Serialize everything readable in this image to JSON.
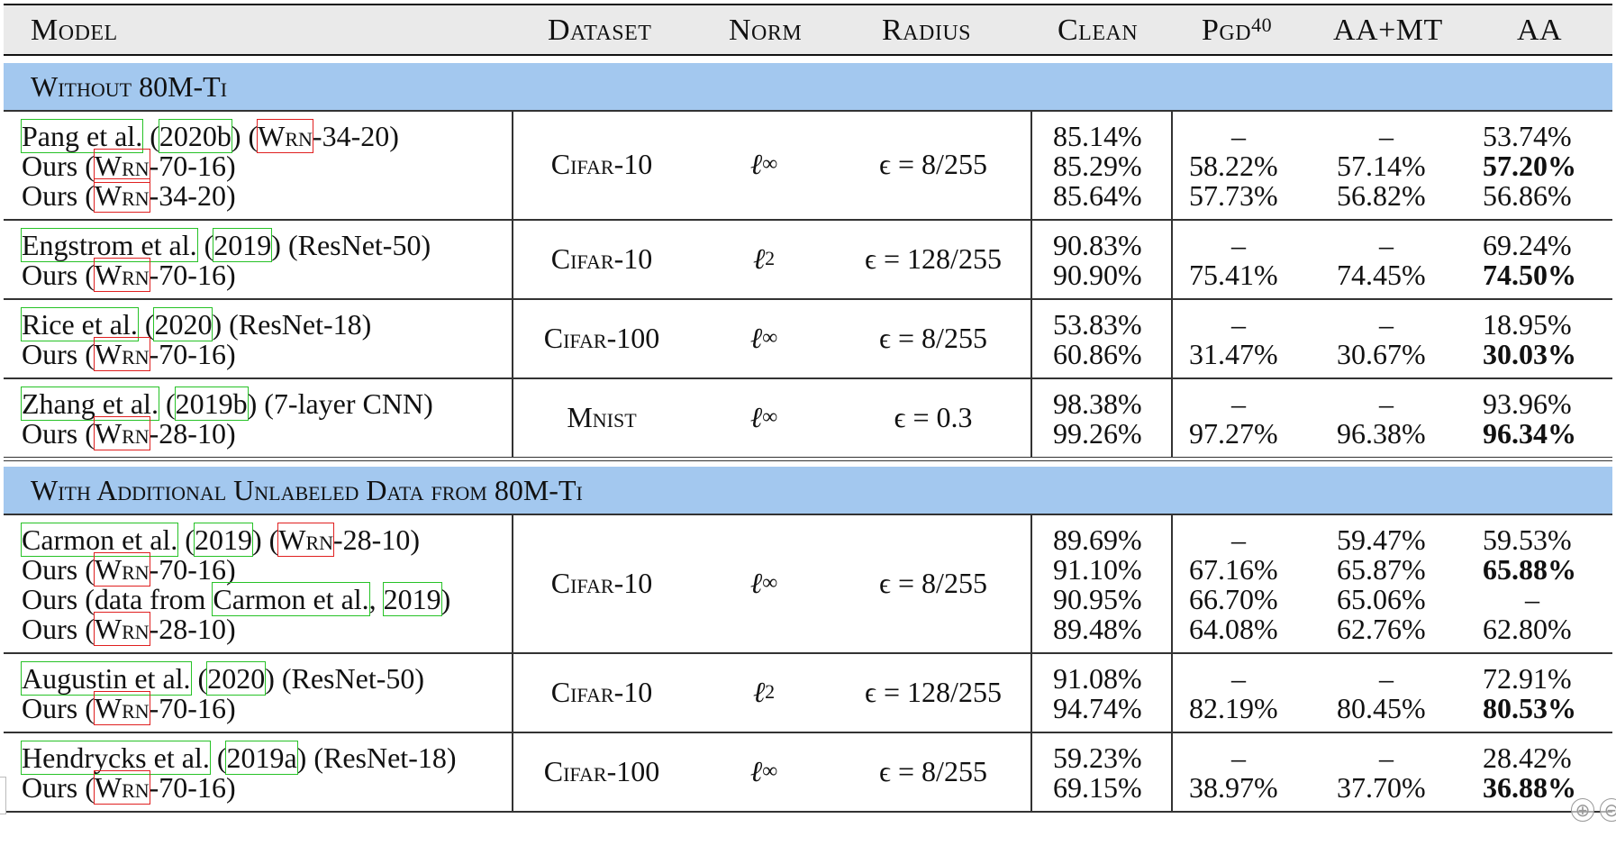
{
  "header": {
    "model": "Model",
    "dataset": "Dataset",
    "norm": "Norm",
    "radius": "Radius",
    "clean": "Clean",
    "pgd": "Pgd",
    "pgd_sup": "40",
    "aamt": "AA+MT",
    "aa": "AA"
  },
  "sections": [
    {
      "title": "Without 80M-Ti",
      "groups": [
        {
          "dataset": "Cifar-10",
          "norm": "ℓ∞",
          "radius": "ϵ = 8/255",
          "rows": [
            {
              "model": {
                "pre": "",
                "cite_name": "Pang et al.",
                "cite_open": " (",
                "cite_year": "2020b",
                "post": ") (",
                "wrn": "Wrn",
                "tail": "-34-20)"
              },
              "clean": "85.14%",
              "pgd": "–",
              "aamt": "–",
              "aa": "53.74%",
              "aa_bold": false
            },
            {
              "model": {
                "pre": "Ours (",
                "wrn": "Wrn",
                "tail": "-70-16)"
              },
              "clean": "85.29%",
              "pgd": "58.22%",
              "aamt": "57.14%",
              "aa": "57.20%",
              "aa_bold": true
            },
            {
              "model": {
                "pre": "Ours (",
                "wrn": "Wrn",
                "tail": "-34-20)"
              },
              "clean": "85.64%",
              "pgd": "57.73%",
              "aamt": "56.82%",
              "aa": "56.86%",
              "aa_bold": false
            }
          ]
        },
        {
          "dataset": "Cifar-10",
          "norm": "ℓ2",
          "radius": "ϵ = 128/255",
          "rows": [
            {
              "model": {
                "cite_name": "Engstrom et al.",
                "cite_open": " (",
                "cite_year": "2019",
                "post": ") (ResNet-50)"
              },
              "clean": "90.83%",
              "pgd": "–",
              "aamt": "–",
              "aa": "69.24%",
              "aa_bold": false
            },
            {
              "model": {
                "pre": "Ours (",
                "wrn": "Wrn",
                "tail": "-70-16)"
              },
              "clean": "90.90%",
              "pgd": "75.41%",
              "aamt": "74.45%",
              "aa": "74.50%",
              "aa_bold": true
            }
          ]
        },
        {
          "dataset": "Cifar-100",
          "norm": "ℓ∞",
          "radius": "ϵ = 8/255",
          "rows": [
            {
              "model": {
                "cite_name": "Rice et al.",
                "cite_open": " (",
                "cite_year": "2020",
                "post": ") (ResNet-18)"
              },
              "clean": "53.83%",
              "pgd": "–",
              "aamt": "–",
              "aa": "18.95%",
              "aa_bold": false
            },
            {
              "model": {
                "pre": "Ours (",
                "wrn": "Wrn",
                "tail": "-70-16)"
              },
              "clean": "60.86%",
              "pgd": "31.47%",
              "aamt": "30.67%",
              "aa": "30.03%",
              "aa_bold": true
            }
          ]
        },
        {
          "dataset": "Mnist",
          "norm": "ℓ∞",
          "radius": "ϵ = 0.3",
          "rows": [
            {
              "model": {
                "cite_name": "Zhang et al.",
                "cite_open": " (",
                "cite_year": "2019b",
                "post": ") (7-layer CNN)"
              },
              "clean": "98.38%",
              "pgd": "–",
              "aamt": "–",
              "aa": "93.96%",
              "aa_bold": false
            },
            {
              "model": {
                "pre": "Ours (",
                "wrn": "Wrn",
                "tail": "-28-10)"
              },
              "clean": "99.26%",
              "pgd": "97.27%",
              "aamt": "96.38%",
              "aa": "96.34%",
              "aa_bold": true
            }
          ]
        }
      ]
    },
    {
      "title": "With Additional Unlabeled Data from 80M-Ti",
      "groups": [
        {
          "dataset": "Cifar-10",
          "norm": "ℓ∞",
          "radius": "ϵ = 8/255",
          "rows": [
            {
              "model": {
                "cite_name": "Carmon et al.",
                "cite_open": " (",
                "cite_year": "2019",
                "post": ") (",
                "wrn": "Wrn",
                "tail": "-28-10)"
              },
              "clean": "89.69%",
              "pgd": "–",
              "aamt": "59.47%",
              "aa": "59.53%",
              "aa_bold": false
            },
            {
              "model": {
                "pre": "Ours (",
                "wrn": "Wrn",
                "tail": "-70-16)"
              },
              "clean": "91.10%",
              "pgd": "67.16%",
              "aamt": "65.87%",
              "aa": "65.88%",
              "aa_bold": true
            },
            {
              "model": {
                "pre": "Ours (data from ",
                "cite_name": "Carmon et al.",
                "cite_open": ", ",
                "cite_year": "2019",
                "post": ")"
              },
              "clean": "90.95%",
              "pgd": "66.70%",
              "aamt": "65.06%",
              "aa": "–",
              "aa_bold": false
            },
            {
              "model": {
                "pre": "Ours (",
                "wrn": "Wrn",
                "tail": "-28-10)"
              },
              "clean": "89.48%",
              "pgd": "64.08%",
              "aamt": "62.76%",
              "aa": "62.80%",
              "aa_bold": false
            }
          ]
        },
        {
          "dataset": "Cifar-10",
          "norm": "ℓ2",
          "radius": "ϵ = 128/255",
          "rows": [
            {
              "model": {
                "cite_name": "Augustin et al.",
                "cite_open": " (",
                "cite_year": "2020",
                "post": ") (ResNet-50)"
              },
              "clean": "91.08%",
              "pgd": "–",
              "aamt": "–",
              "aa": "72.91%",
              "aa_bold": false
            },
            {
              "model": {
                "pre": "Ours (",
                "wrn": "Wrn",
                "tail": "-70-16)"
              },
              "clean": "94.74%",
              "pgd": "82.19%",
              "aamt": "80.45%",
              "aa": "80.53%",
              "aa_bold": true
            }
          ]
        },
        {
          "dataset": "Cifar-100",
          "norm": "ℓ∞",
          "radius": "ϵ = 8/255",
          "rows": [
            {
              "model": {
                "cite_name": "Hendrycks et al.",
                "cite_open": " (",
                "cite_year": "2019a",
                "post": ") (ResNet-18)"
              },
              "clean": "59.23%",
              "pgd": "–",
              "aamt": "–",
              "aa": "28.42%",
              "aa_bold": false
            },
            {
              "model": {
                "pre": "Ours (",
                "wrn": "Wrn",
                "tail": "-70-16)"
              },
              "clean": "69.15%",
              "pgd": "38.97%",
              "aamt": "37.70%",
              "aa": "36.88%",
              "aa_bold": true
            }
          ]
        }
      ]
    }
  ],
  "controls": {
    "zoom_in": "⊕",
    "zoom_out": "⊖"
  }
}
